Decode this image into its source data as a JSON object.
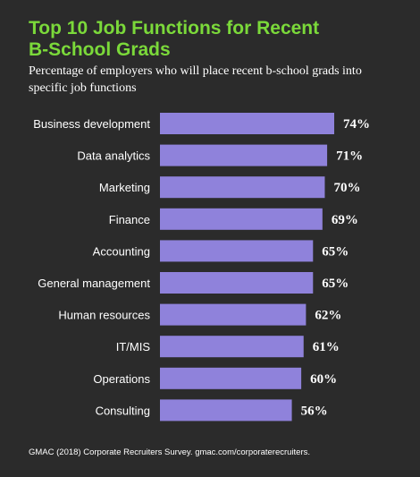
{
  "header": {
    "title": "Top 10 Job Functions for Recent\nB-School Grads",
    "subtitle": "Percentage of employers who will place recent b-school grads into specific job functions"
  },
  "footer": {
    "source": "GMAC (2018) Corporate Recruiters Survey. gmac.com/corporaterecruiters."
  },
  "colors": {
    "background": "#2b2b2b",
    "title": "#7bd93a",
    "bar": "#8f82db",
    "text": "#ffffff"
  },
  "chart_data": {
    "type": "bar",
    "orientation": "horizontal",
    "title": "Top 10 Job Functions for Recent B-School Grads",
    "subtitle": "Percentage of employers who will place recent b-school grads into specific job functions",
    "categories": [
      "Business development",
      "Data analytics",
      "Marketing",
      "Finance",
      "Accounting",
      "General management",
      "Human resources",
      "IT/MIS",
      "Operations",
      "Consulting"
    ],
    "values": [
      74,
      71,
      70,
      69,
      65,
      65,
      62,
      61,
      60,
      56
    ],
    "value_labels": [
      "74%",
      "71%",
      "70%",
      "69%",
      "65%",
      "65%",
      "62%",
      "61%",
      "60%",
      "56%"
    ],
    "xlim": [
      0,
      74
    ],
    "grid": false,
    "legend": "none"
  }
}
